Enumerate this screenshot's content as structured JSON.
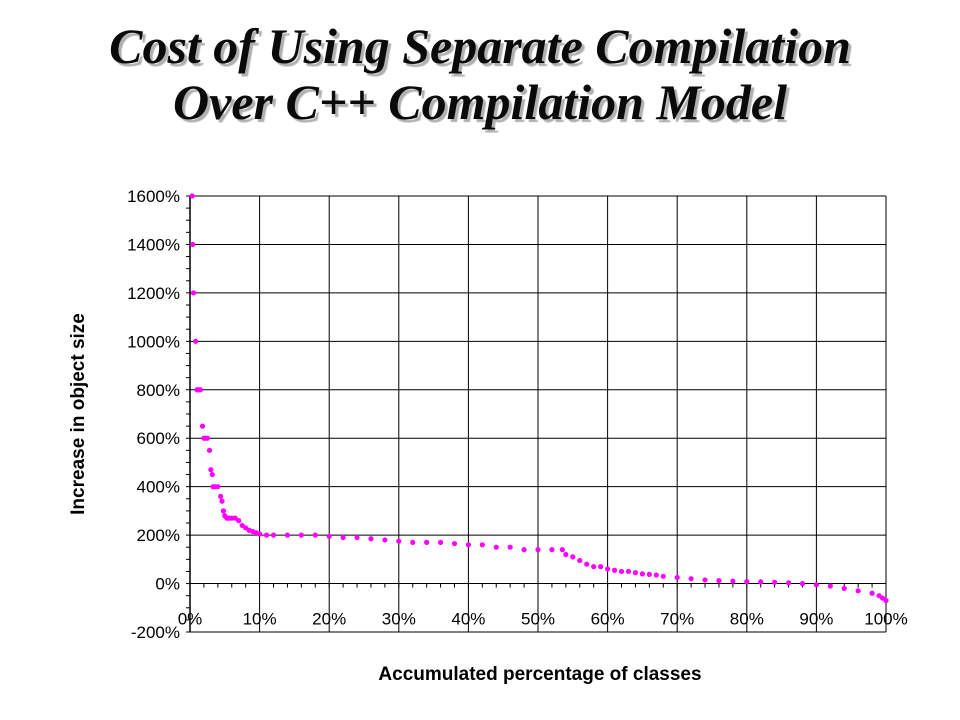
{
  "title": {
    "line1": "Cost of Using Separate Compilation",
    "line2": "Over C++ Compilation Model"
  },
  "chart_data": {
    "type": "scatter",
    "xlabel": "Accumulated percentage of classes",
    "ylabel": "Increase in object size",
    "xlim": [
      0,
      100
    ],
    "ylim": [
      -200,
      1600
    ],
    "x_ticks": [
      "0%",
      "10%",
      "20%",
      "30%",
      "40%",
      "50%",
      "60%",
      "70%",
      "80%",
      "90%",
      "100%"
    ],
    "y_ticks": [
      "-200%",
      "0%",
      "200%",
      "400%",
      "600%",
      "800%",
      "1000%",
      "1200%",
      "1400%",
      "1600%"
    ],
    "grid": true,
    "legend": "none",
    "series": [
      {
        "color": "#ff00ff",
        "x": [
          0.3,
          0.4,
          0.5,
          0.8,
          1.0,
          1.2,
          1.5,
          1.8,
          2.0,
          2.2,
          2.5,
          2.8,
          3.0,
          3.2,
          3.3,
          3.6,
          4.0,
          4.4,
          4.6,
          4.8,
          5.0,
          5.3,
          5.6,
          6.0,
          6.5,
          7.0,
          7.5,
          8.0,
          8.5,
          9.0,
          9.5,
          10.0,
          11.0,
          12.0,
          14.0,
          16.0,
          18.0,
          20.0,
          22.0,
          24.0,
          26.0,
          28.0,
          30.0,
          32.0,
          34.0,
          36.0,
          38.0,
          40.0,
          42.0,
          44.0,
          46.0,
          48.0,
          50.0,
          52.0,
          53.5,
          54.0,
          55.0,
          56.0,
          57.0,
          58.0,
          59.0,
          60.0,
          61.0,
          62.0,
          63.0,
          64.0,
          65.0,
          66.0,
          67.0,
          68.0,
          70.0,
          72.0,
          74.0,
          76.0,
          78.0,
          80.0,
          82.0,
          84.0,
          86.0,
          88.0,
          90.0,
          92.0,
          94.0,
          96.0,
          98.0,
          99.0,
          99.5,
          100.0
        ],
        "y": [
          1600,
          1400,
          1200,
          1000,
          800,
          800,
          800,
          650,
          600,
          600,
          600,
          550,
          470,
          450,
          400,
          400,
          400,
          360,
          340,
          300,
          280,
          270,
          270,
          270,
          270,
          260,
          240,
          230,
          220,
          215,
          210,
          205,
          200,
          200,
          200,
          200,
          200,
          195,
          190,
          190,
          185,
          180,
          175,
          170,
          170,
          170,
          165,
          160,
          160,
          150,
          150,
          140,
          140,
          140,
          140,
          120,
          110,
          95,
          80,
          70,
          70,
          60,
          55,
          50,
          50,
          45,
          40,
          38,
          35,
          30,
          25,
          20,
          15,
          12,
          10,
          8,
          7,
          5,
          3,
          0,
          -5,
          -10,
          -20,
          -30,
          -40,
          -50,
          -60,
          -70
        ]
      }
    ]
  }
}
